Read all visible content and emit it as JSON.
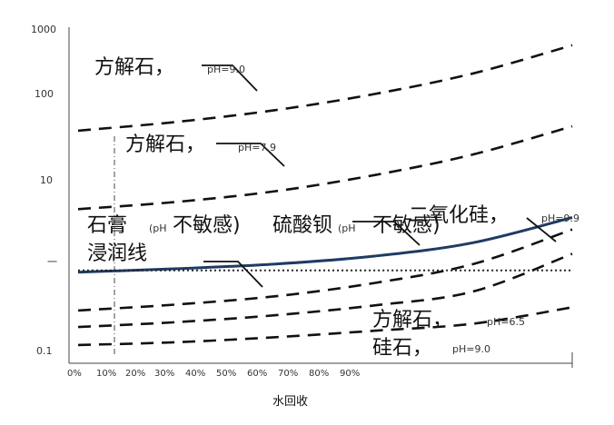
{
  "chart_data": {
    "type": "line",
    "xlabel": "水回收",
    "ylabel": "",
    "y_scale": "log",
    "ylim": [
      0.1,
      1000
    ],
    "xlim": [
      0,
      100
    ],
    "y_tick_labels": [
      "1000",
      "100",
      "10",
      "一",
      "0.1"
    ],
    "x_tick_labels": [
      "0%",
      "10%",
      "20%",
      "30%",
      "40%",
      "50%",
      "60%",
      "70%",
      "80%",
      "90%"
    ],
    "series": [
      {
        "id": "calcite_ph9",
        "style": "dashed",
        "x": [
          0,
          20,
          40,
          60,
          80,
          100
        ],
        "y": [
          53,
          68,
          95,
          150,
          270,
          600
        ]
      },
      {
        "id": "calcite_ph7_9",
        "style": "dashed",
        "x": [
          0,
          20,
          40,
          60,
          80,
          100
        ],
        "y": [
          5.7,
          7.0,
          9.5,
          15,
          27,
          60
        ]
      },
      {
        "id": "gypsum_barium_sulfate",
        "style": "solid",
        "x": [
          0,
          20,
          40,
          60,
          80,
          100
        ],
        "y": [
          0.95,
          1.05,
          1.2,
          1.5,
          2.2,
          4.5
        ]
      },
      {
        "id": "wetting_line",
        "style": "dotted",
        "x": [
          0,
          100
        ],
        "y": [
          1.0,
          1.0
        ]
      },
      {
        "id": "silica_ph9",
        "style": "dashed",
        "x": [
          0,
          20,
          40,
          60,
          80,
          100
        ],
        "y": [
          0.32,
          0.38,
          0.48,
          0.7,
          1.2,
          3.2
        ]
      },
      {
        "id": "calcite_ph6_5",
        "style": "dashed",
        "x": [
          0,
          20,
          40,
          60,
          80,
          100
        ],
        "y": [
          0.2,
          0.23,
          0.28,
          0.37,
          0.55,
          1.6
        ]
      },
      {
        "id": "silica_stone_ph9",
        "style": "dashed",
        "x": [
          0,
          20,
          40,
          60,
          80,
          100
        ],
        "y": [
          0.12,
          0.13,
          0.15,
          0.18,
          0.22,
          0.35
        ]
      }
    ],
    "annotations": {
      "calcite_ph9_main": "方解石，",
      "calcite_ph9_ph": "pH=9.0",
      "calcite_ph7_9_main": "方解石，",
      "calcite_ph7_9_ph": "pH=7.9",
      "gypsum_a": "石膏",
      "gypsum_b": "(pH",
      "gypsum_c": "不敏感)",
      "barium_a": "硫酸钡",
      "barium_b": "(pH",
      "barium_c": "不敏感)",
      "wetting": "浸润线",
      "silica_main": "二氧化硅，",
      "silica_ph": "pH=9.9",
      "calcite_ph6_5_main": "方解石，",
      "calcite_ph6_5_ph": "pH=6.5",
      "silica_stone_main": "硅石，",
      "silica_stone_ph": "pH=9.0"
    },
    "grid": false,
    "legend": "none"
  }
}
